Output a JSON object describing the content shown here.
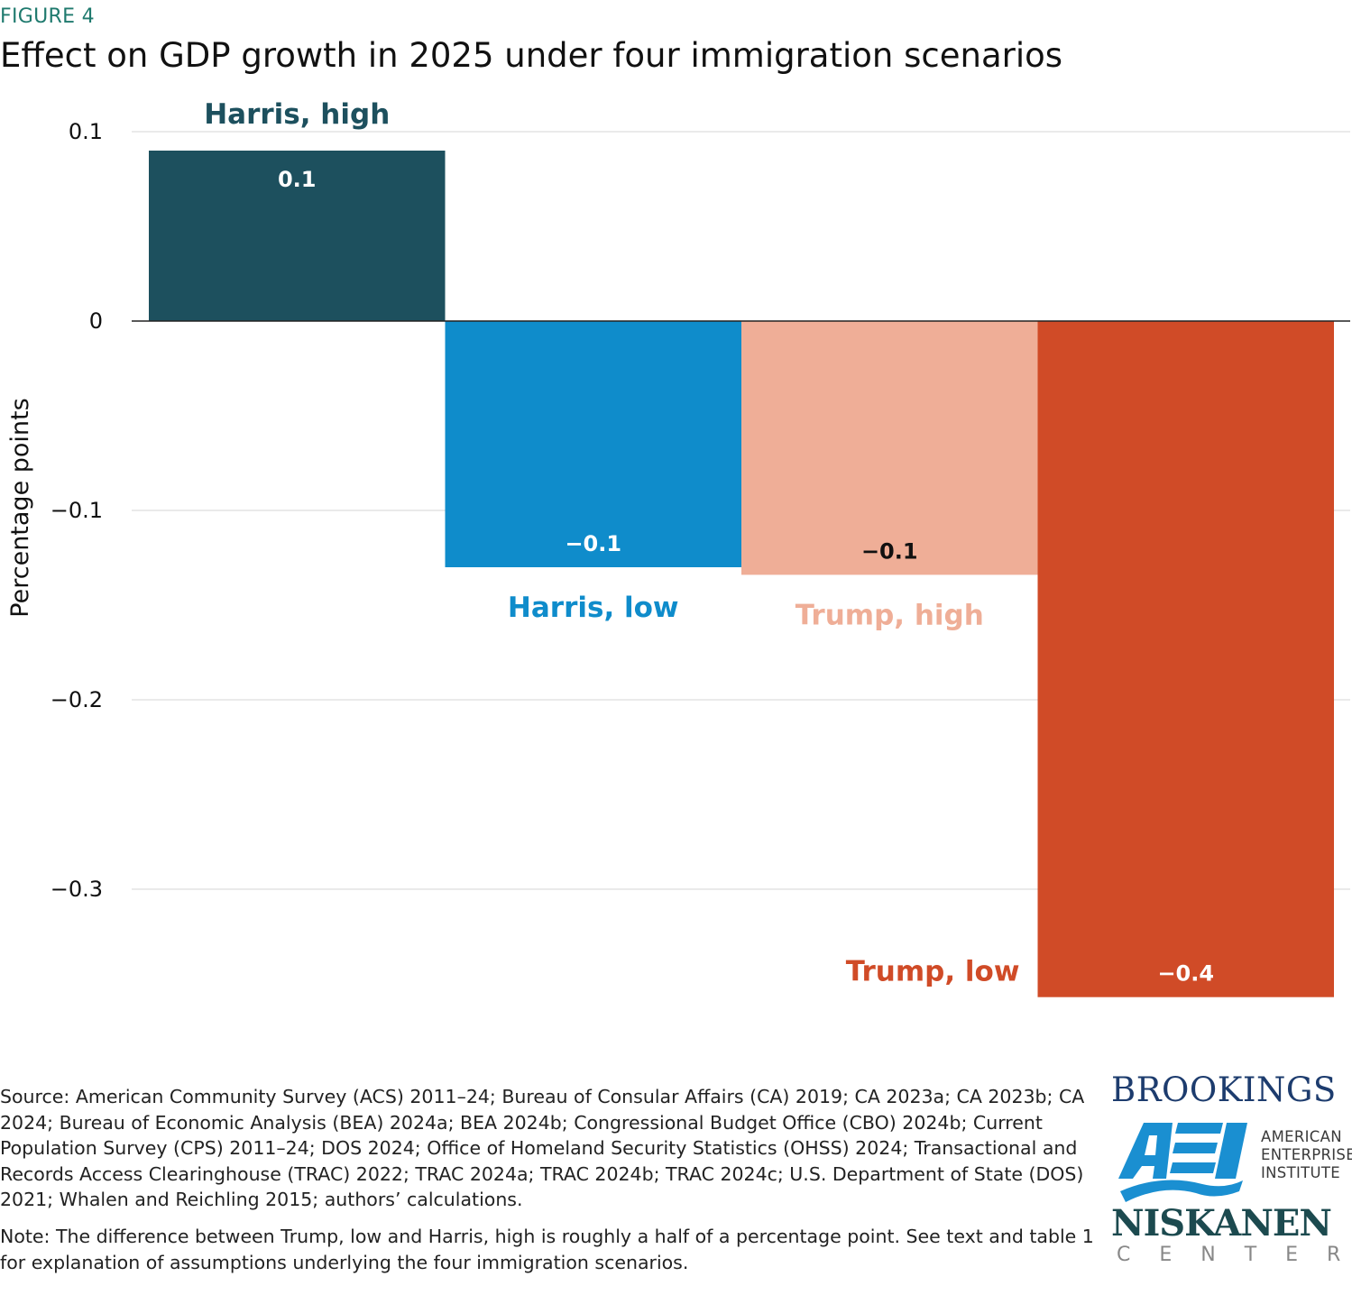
{
  "figure_label": "FIGURE 4",
  "title": "Effect on GDP growth in 2025 under four immigration scenarios",
  "chart_data": {
    "type": "bar",
    "title": "Effect on GDP growth in 2025 under four immigration scenarios",
    "xlabel": "",
    "ylabel": "Percentage points",
    "ylim": [
      -0.36,
      0.1
    ],
    "yticks": [
      0.1,
      0,
      -0.1,
      -0.2,
      -0.3
    ],
    "ytick_labels": [
      "0.1",
      "0",
      "−0.1",
      "−0.2",
      "−0.3"
    ],
    "grid": true,
    "legend": "none (direct labels)",
    "categories": [
      "Harris, high",
      "Harris, low",
      "Trump, high",
      "Trump, low"
    ],
    "values": [
      0.09,
      -0.13,
      -0.134,
      -0.357
    ],
    "data_labels": [
      "0.1",
      "−0.1",
      "−0.1",
      "−0.4"
    ],
    "colors": [
      "#1d505e",
      "#0f8ccb",
      "#efae97",
      "#d04b27"
    ],
    "label_colors": [
      "#1d505e",
      "#0f8ccb",
      "#efae97",
      "#d04b27"
    ],
    "data_label_colors": [
      "#ffffff",
      "#ffffff",
      "#111111",
      "#ffffff"
    ]
  },
  "footer": {
    "source": "Source: American Community Survey (ACS) 2011–24; Bureau of Consular Affairs (CA) 2019; CA 2023a; CA 2023b; CA 2024; Bureau of Economic Analysis (BEA) 2024a; BEA 2024b; Congressional Budget Office (CBO) 2024b; Current Population Survey (CPS) 2011–24; DOS 2024; Office of Homeland Security Statistics (OHSS) 2024; Transactional and Records Access Clearinghouse (TRAC) 2022; TRAC 2024a; TRAC 2024b; TRAC 2024c; U.S. Department of State (DOS) 2021; Whalen and Reichling 2015; authors’ calculations.",
    "note": "Note: The difference between Trump, low and Harris, high is roughly a half of a percentage point. See text and table 1 for explanation of assumptions underlying the four immigration scenarios."
  },
  "logos": {
    "brookings": "BROOKINGS",
    "aei_mark": "AEI",
    "aei_lines": [
      "AMERICAN",
      "ENTERPRISE",
      "INSTITUTE"
    ],
    "niskanen": "NISKANEN",
    "niskanen_sub": "CENTER"
  }
}
